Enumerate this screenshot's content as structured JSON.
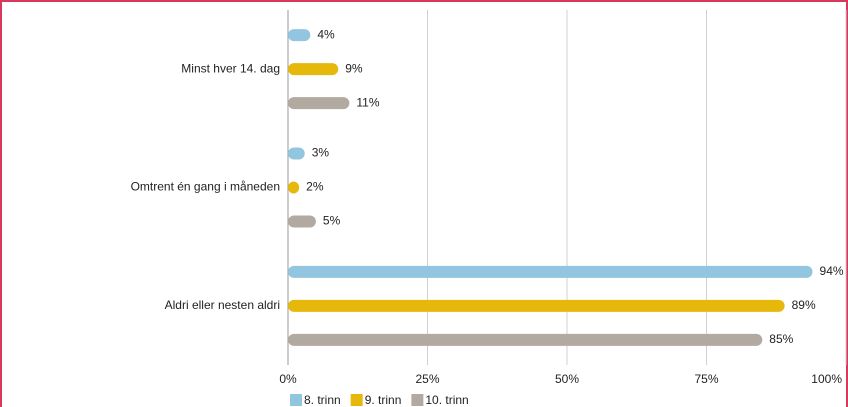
{
  "chart_data": {
    "type": "hbar",
    "categories": [
      "Minst hver 14. dag",
      "Omtrent én gang i måneden",
      "Aldri eller nesten aldri"
    ],
    "series": [
      {
        "name": "8. trinn",
        "color": "#92c5e0",
        "values": [
          4,
          3,
          94
        ],
        "value_labels": [
          "4%",
          "3%",
          "94%"
        ]
      },
      {
        "name": "9. trinn",
        "color": "#e6b80b",
        "values": [
          9,
          2,
          89
        ],
        "value_labels": [
          "9%",
          "2%",
          "89%"
        ]
      },
      {
        "name": "10. trinn",
        "color": "#b2aaa1",
        "values": [
          11,
          5,
          85
        ],
        "value_labels": [
          "11%",
          "5%",
          "85%"
        ]
      }
    ],
    "xlim": [
      0,
      100
    ],
    "xticks": [
      {
        "value": 0,
        "label": "0%"
      },
      {
        "value": 25,
        "label": "25%"
      },
      {
        "value": 50,
        "label": "50%"
      },
      {
        "value": 75,
        "label": "75%"
      },
      {
        "value": 100,
        "label": "100%"
      }
    ],
    "grid": true,
    "legend": "bottom"
  }
}
